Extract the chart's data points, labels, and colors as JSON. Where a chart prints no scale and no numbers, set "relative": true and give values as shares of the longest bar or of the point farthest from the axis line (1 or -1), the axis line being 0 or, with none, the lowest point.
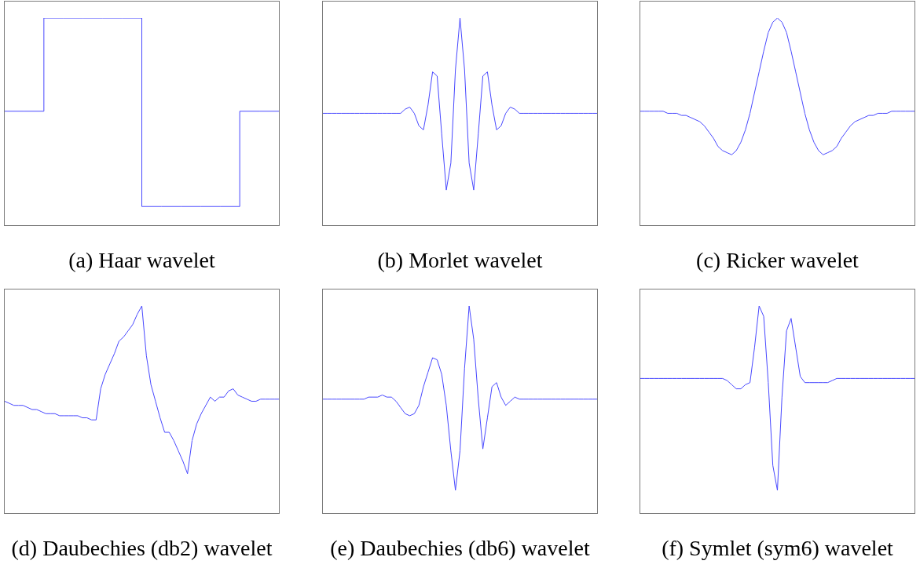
{
  "chart_data": [
    {
      "type": "step",
      "xlabel": "(a) Haar wavelet",
      "relative": true,
      "color": "#4848ff",
      "categories": [
        null,
        null,
        null,
        null,
        null,
        null,
        null,
        null,
        null,
        null,
        null,
        null,
        null,
        null,
        null
      ],
      "values": [
        0.55,
        0.55,
        1,
        1,
        1,
        1,
        1,
        0.09,
        0.09,
        0.09,
        0.09,
        0.09,
        0.55,
        0.55,
        0.55
      ]
    },
    {
      "type": "line",
      "xlabel": "(b) Morlet wavelet",
      "relative": true,
      "color": "#4848ff",
      "categories": [
        null,
        null,
        null,
        null,
        null,
        null,
        null,
        null,
        null,
        null,
        null,
        null,
        null,
        null,
        null,
        null,
        null,
        null,
        null,
        null,
        null,
        null,
        null,
        null,
        null,
        null,
        null,
        null,
        null,
        null,
        null,
        null,
        null,
        null,
        null,
        null,
        null,
        null,
        null,
        null,
        null,
        null,
        null,
        null,
        null,
        null,
        null,
        null,
        null,
        null,
        null,
        null,
        null,
        null,
        null,
        null,
        null,
        null,
        null,
        null,
        null
      ],
      "values": [
        0.54,
        0.54,
        0.54,
        0.54,
        0.54,
        0.54,
        0.54,
        0.54,
        0.54,
        0.54,
        0.54,
        0.54,
        0.54,
        0.54,
        0.54,
        0.54,
        0.54,
        0.54,
        0.56,
        0.57,
        0.54,
        0.48,
        0.46,
        0.58,
        0.74,
        0.72,
        0.44,
        0.17,
        0.3,
        0.75,
        1,
        0.75,
        0.3,
        0.17,
        0.44,
        0.72,
        0.74,
        0.58,
        0.46,
        0.48,
        0.54,
        0.57,
        0.56,
        0.54,
        0.54,
        0.54,
        0.54,
        0.54,
        0.54,
        0.54,
        0.54,
        0.54,
        0.54,
        0.54,
        0.54,
        0.54,
        0.54,
        0.54,
        0.54,
        0.54,
        0.54
      ]
    },
    {
      "type": "line",
      "xlabel": "(c) Ricker wavelet",
      "relative": true,
      "color": "#4848ff",
      "categories": [
        null,
        null,
        null,
        null,
        null,
        null,
        null,
        null,
        null,
        null,
        null,
        null,
        null,
        null,
        null,
        null,
        null,
        null,
        null,
        null,
        null,
        null,
        null,
        null,
        null,
        null,
        null,
        null,
        null,
        null,
        null,
        null,
        null,
        null,
        null,
        null,
        null,
        null,
        null,
        null,
        null,
        null,
        null,
        null,
        null,
        null,
        null,
        null,
        null,
        null,
        null,
        null,
        null,
        null,
        null,
        null,
        null,
        null,
        null,
        null,
        null
      ],
      "values": [
        0.55,
        0.55,
        0.55,
        0.55,
        0.55,
        0.55,
        0.54,
        0.54,
        0.54,
        0.53,
        0.53,
        0.52,
        0.51,
        0.5,
        0.48,
        0.45,
        0.42,
        0.38,
        0.36,
        0.35,
        0.34,
        0.36,
        0.4,
        0.46,
        0.54,
        0.64,
        0.74,
        0.84,
        0.93,
        0.98,
        1,
        0.98,
        0.93,
        0.84,
        0.74,
        0.64,
        0.54,
        0.46,
        0.4,
        0.36,
        0.34,
        0.35,
        0.36,
        0.38,
        0.42,
        0.45,
        0.48,
        0.5,
        0.51,
        0.52,
        0.53,
        0.53,
        0.54,
        0.54,
        0.54,
        0.55,
        0.55,
        0.55,
        0.55,
        0.55,
        0.55
      ]
    },
    {
      "type": "line",
      "xlabel": "(d) Daubechies (db2) wavelet",
      "relative": true,
      "color": "#4848ff",
      "categories": [
        null,
        null,
        null,
        null,
        null,
        null,
        null,
        null,
        null,
        null,
        null,
        null,
        null,
        null,
        null,
        null,
        null,
        null,
        null,
        null,
        null,
        null,
        null,
        null,
        null,
        null,
        null,
        null,
        null,
        null,
        null,
        null,
        null,
        null,
        null,
        null,
        null,
        null,
        null,
        null,
        null,
        null,
        null,
        null,
        null,
        null,
        null,
        null,
        null,
        null,
        null,
        null,
        null,
        null,
        null,
        null,
        null,
        null,
        null,
        null,
        null
      ],
      "values": [
        0.54,
        0.53,
        0.52,
        0.52,
        0.52,
        0.51,
        0.5,
        0.5,
        0.49,
        0.48,
        0.48,
        0.48,
        0.47,
        0.47,
        0.47,
        0.47,
        0.47,
        0.46,
        0.46,
        0.45,
        0.45,
        0.6,
        0.67,
        0.72,
        0.77,
        0.83,
        0.85,
        0.88,
        0.91,
        0.96,
        1,
        0.76,
        0.62,
        0.54,
        0.46,
        0.39,
        0.39,
        0.35,
        0.3,
        0.25,
        0.19,
        0.35,
        0.43,
        0.48,
        0.52,
        0.56,
        0.54,
        0.56,
        0.56,
        0.59,
        0.6,
        0.57,
        0.56,
        0.55,
        0.54,
        0.54,
        0.55,
        0.55,
        0.55,
        0.55,
        0.55
      ]
    },
    {
      "type": "line",
      "xlabel": "(e) Daubechies (db6) wavelet",
      "relative": true,
      "color": "#4848ff",
      "categories": [
        null,
        null,
        null,
        null,
        null,
        null,
        null,
        null,
        null,
        null,
        null,
        null,
        null,
        null,
        null,
        null,
        null,
        null,
        null,
        null,
        null,
        null,
        null,
        null,
        null,
        null,
        null,
        null,
        null,
        null,
        null,
        null,
        null,
        null,
        null,
        null,
        null,
        null,
        null,
        null,
        null,
        null,
        null,
        null,
        null,
        null,
        null,
        null,
        null,
        null,
        null,
        null,
        null,
        null,
        null,
        null,
        null,
        null,
        null,
        null,
        null
      ],
      "values": [
        0.55,
        0.55,
        0.55,
        0.55,
        0.55,
        0.55,
        0.55,
        0.55,
        0.55,
        0.55,
        0.56,
        0.56,
        0.56,
        0.57,
        0.56,
        0.56,
        0.54,
        0.51,
        0.48,
        0.47,
        0.48,
        0.52,
        0.61,
        0.68,
        0.75,
        0.74,
        0.67,
        0.52,
        0.3,
        0.11,
        0.3,
        0.7,
        1,
        0.84,
        0.55,
        0.31,
        0.46,
        0.61,
        0.63,
        0.56,
        0.52,
        0.54,
        0.56,
        0.55,
        0.55,
        0.55,
        0.55,
        0.55,
        0.55,
        0.55,
        0.55,
        0.55,
        0.55,
        0.55,
        0.55,
        0.55,
        0.55,
        0.55,
        0.55,
        0.55,
        0.55
      ]
    },
    {
      "type": "line",
      "xlabel": "(f) Symlet (sym6) wavelet",
      "relative": true,
      "color": "#4848ff",
      "categories": [
        null,
        null,
        null,
        null,
        null,
        null,
        null,
        null,
        null,
        null,
        null,
        null,
        null,
        null,
        null,
        null,
        null,
        null,
        null,
        null,
        null,
        null,
        null,
        null,
        null,
        null,
        null,
        null,
        null,
        null,
        null,
        null,
        null,
        null,
        null,
        null,
        null,
        null,
        null,
        null,
        null,
        null,
        null,
        null,
        null,
        null,
        null,
        null,
        null,
        null,
        null,
        null,
        null,
        null,
        null,
        null,
        null,
        null,
        null,
        null,
        null
      ],
      "values": [
        0.65,
        0.65,
        0.65,
        0.65,
        0.65,
        0.65,
        0.65,
        0.65,
        0.65,
        0.65,
        0.65,
        0.65,
        0.65,
        0.65,
        0.65,
        0.65,
        0.65,
        0.65,
        0.65,
        0.64,
        0.62,
        0.6,
        0.6,
        0.62,
        0.63,
        0.8,
        1,
        0.95,
        0.63,
        0.23,
        0.11,
        0.56,
        0.88,
        0.94,
        0.8,
        0.66,
        0.63,
        0.63,
        0.63,
        0.63,
        0.63,
        0.63,
        0.64,
        0.65,
        0.65,
        0.65,
        0.65,
        0.65,
        0.65,
        0.65,
        0.65,
        0.65,
        0.65,
        0.65,
        0.65,
        0.65,
        0.65,
        0.65,
        0.65,
        0.65,
        0.65
      ]
    }
  ]
}
